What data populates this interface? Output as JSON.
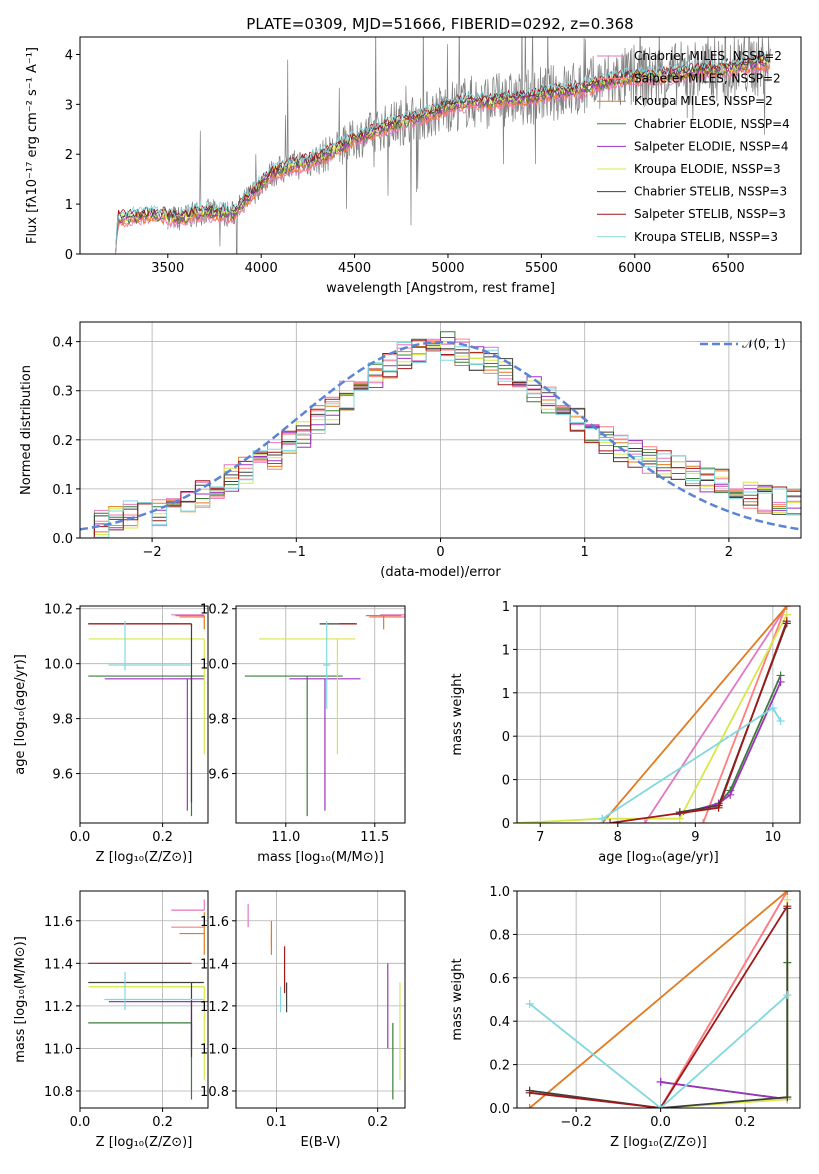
{
  "colors": {
    "chabrier_miles": "#e377c2",
    "salpeter_miles": "#ff7f7f",
    "kroupa_miles": "#e07b20",
    "chabrier_elodie": "#3a7d3a",
    "salpeter_elodie": "#9d33bd",
    "kroupa_elodie": "#d6e84a",
    "chabrier_stelib": "#404040",
    "salpeter_stelib": "#a01818",
    "kroupa_stelib": "#80d8e0",
    "data": "#808080",
    "normal": "#5b83d6",
    "grid": "#b0b0b0"
  },
  "chart_data": [
    {
      "id": "spectrum",
      "type": "line",
      "title": "PLATE=0309, MJD=51666, FIBERID=0292, z=0.368",
      "xlabel": "wavelength [Angstrom, rest frame]",
      "ylabel": "Flux [fλ10⁻¹⁷ erg cm⁻² s⁻¹ A⁻¹]",
      "xlim": [
        3030,
        6890
      ],
      "ylim": [
        0,
        4.35
      ],
      "xticks": [
        3500,
        4000,
        4500,
        5000,
        5500,
        6000,
        6500
      ],
      "yticks": [
        0,
        1,
        2,
        3,
        4
      ],
      "grid": false,
      "legend_position": "top-right",
      "series": [
        {
          "name": "Chabrier MILES, N_SSP=2",
          "legend": "Chabrier MILES, NSSP=2"
        },
        {
          "name": "Salpeter MILES, N_SSP=2",
          "legend": "Salpeter MILES, NSSP=2"
        },
        {
          "name": "Kroupa MILES, N_SSP=2",
          "legend": "Kroupa MILES, NSSP=2"
        },
        {
          "name": "Chabrier ELODIE, N_SSP=4",
          "legend": "Chabrier ELODIE, NSSP=4"
        },
        {
          "name": "Salpeter ELODIE, N_SSP=4",
          "legend": "Salpeter ELODIE, NSSP=4"
        },
        {
          "name": "Kroupa ELODIE, N_SSP=3",
          "legend": "Kroupa ELODIE, NSSP=3"
        },
        {
          "name": "Chabrier STELIB, N_SSP=3",
          "legend": "Chabrier STELIB, NSSP=3"
        },
        {
          "name": "Salpeter STELIB, N_SSP=3",
          "legend": "Salpeter STELIB, NSSP=3"
        },
        {
          "name": "Kroupa STELIB, N_SSP=3",
          "legend": "Kroupa STELIB, NSSP=3"
        }
      ],
      "model_continuum": {
        "x": [
          3220,
          3230,
          3400,
          3500,
          3550,
          3700,
          3850,
          3950,
          4050,
          4150,
          4300,
          4400,
          4500,
          4600,
          4700,
          4800,
          4900,
          5000,
          5100,
          5200,
          5300,
          5400,
          5500,
          5600,
          5700,
          5800,
          5900,
          6000,
          6100,
          6200,
          6300,
          6400,
          6500,
          6600,
          6730
        ],
        "y": [
          0,
          0.7,
          0.78,
          0.76,
          0.7,
          0.85,
          0.8,
          1.2,
          1.6,
          1.75,
          1.9,
          2.1,
          2.3,
          2.45,
          2.6,
          2.7,
          2.8,
          2.95,
          3.05,
          3.05,
          3.1,
          3.1,
          3.2,
          3.25,
          3.3,
          3.4,
          3.5,
          3.55,
          3.55,
          3.6,
          3.65,
          3.7,
          3.7,
          3.8,
          3.85
        ]
      },
      "data_series": {
        "name": "data",
        "x_range": [
          3500,
          6730
        ],
        "note_shape": "noisy observed spectrum following the model continuum"
      }
    },
    {
      "id": "residuals",
      "type": "line",
      "xlabel": "(data-model)/error",
      "ylabel": "Normed distribution",
      "xlim": [
        -2.5,
        2.5
      ],
      "ylim": [
        0,
        0.44
      ],
      "xticks": [
        -2,
        -1,
        0,
        1,
        2
      ],
      "yticks": [
        0.0,
        0.1,
        0.2,
        0.3,
        0.4
      ],
      "grid": true,
      "legend_position": "top-right",
      "series": [
        {
          "name": "𝒩(0, 1)",
          "legend": "𝒩(0, 1)",
          "mean": 0,
          "sigma": 1
        }
      ],
      "histogram_bins": {
        "start": -2.5,
        "width": 0.1,
        "heights": [
          0.02,
          0.03,
          0.04,
          0.05,
          0.06,
          0.05,
          0.07,
          0.08,
          0.09,
          0.1,
          0.12,
          0.14,
          0.16,
          0.17,
          0.19,
          0.21,
          0.24,
          0.26,
          0.29,
          0.31,
          0.33,
          0.35,
          0.37,
          0.38,
          0.38,
          0.39,
          0.38,
          0.37,
          0.36,
          0.34,
          0.32,
          0.3,
          0.28,
          0.26,
          0.24,
          0.22,
          0.2,
          0.18,
          0.17,
          0.16,
          0.15,
          0.14,
          0.13,
          0.12,
          0.11,
          0.1,
          0.09,
          0.08,
          0.075,
          0.07
        ]
      }
    },
    {
      "id": "age-vs-Z",
      "type": "scatter",
      "xlabel": "Z [log₁₀(Z/Z⊙)]",
      "ylabel": "age  [log₁₀(age/yr)]",
      "xlim": [
        0,
        0.31
      ],
      "ylim": [
        9.42,
        10.21
      ],
      "xticks": [
        0.0,
        0.2
      ],
      "yticks": [
        9.6,
        9.8,
        10.0,
        10.2
      ],
      "grid": true,
      "points": [
        {
          "series": "Chabrier MILES",
          "x": 0.301,
          "y": 10.178,
          "xerr": [
            0.08,
            0.0
          ],
          "yerr": [
            0.0,
            0.0
          ]
        },
        {
          "series": "Salpeter MILES",
          "x": 0.301,
          "y": 10.17,
          "xerr": [
            0.06,
            0.0
          ],
          "yerr": [
            0.0,
            0.0
          ]
        },
        {
          "series": "Kroupa MILES",
          "x": 0.301,
          "y": 10.175,
          "xerr": [
            0.07,
            0.0
          ],
          "yerr": [
            0.05,
            0.0
          ]
        },
        {
          "series": "Chabrier ELODIE",
          "x": 0.27,
          "y": 9.955,
          "xerr": [
            0.25,
            0.03
          ],
          "yerr": [
            0.51,
            0.0
          ]
        },
        {
          "series": "Salpeter ELODIE",
          "x": 0.26,
          "y": 9.945,
          "xerr": [
            0.2,
            0.04
          ],
          "yerr": [
            0.48,
            0.0
          ]
        },
        {
          "series": "Kroupa ELODIE",
          "x": 0.301,
          "y": 10.09,
          "xerr": [
            0.28,
            0.0
          ],
          "yerr": [
            0.42,
            0.0
          ]
        },
        {
          "series": "Chabrier STELIB",
          "x": 0.27,
          "y": 10.145,
          "xerr": [
            0.25,
            0.0
          ],
          "yerr": [
            0.65,
            0.0
          ]
        },
        {
          "series": "Salpeter STELIB",
          "x": 0.27,
          "y": 10.145,
          "xerr": [
            0.25,
            0.0
          ],
          "yerr": [
            0.01,
            0.0
          ]
        },
        {
          "series": "Kroupa STELIB",
          "x": 0.109,
          "y": 9.995,
          "xerr": [
            0.04,
            0.16
          ],
          "yerr": [
            0.02,
            0.16
          ]
        }
      ]
    },
    {
      "id": "age-vs-mass",
      "type": "scatter",
      "xlabel": "mass [log₁₀(M/M⊙)]",
      "ylabel": "",
      "xlim": [
        10.72,
        11.67
      ],
      "ylim": [
        9.42,
        10.21
      ],
      "xticks": [
        11.0,
        11.5
      ],
      "yticks": [
        9.6,
        9.8,
        10.0,
        10.2
      ],
      "grid": true,
      "points": [
        {
          "series": "Chabrier MILES",
          "x": 11.65,
          "y": 10.178,
          "xerr": [
            0.12,
            0.02
          ],
          "yerr": [
            0.0,
            0.0
          ]
        },
        {
          "series": "Salpeter MILES",
          "x": 11.57,
          "y": 10.17,
          "xerr": [
            0.1,
            0.1
          ],
          "yerr": [
            0.0,
            0.0
          ]
        },
        {
          "series": "Kroupa MILES",
          "x": 11.55,
          "y": 10.175,
          "xerr": [
            0.1,
            0.1
          ],
          "yerr": [
            0.05,
            0.0
          ]
        },
        {
          "series": "Chabrier ELODIE",
          "x": 11.12,
          "y": 9.955,
          "xerr": [
            0.35,
            0.2
          ],
          "yerr": [
            0.51,
            0.0
          ]
        },
        {
          "series": "Salpeter ELODIE",
          "x": 11.22,
          "y": 9.945,
          "xerr": [
            0.2,
            0.2
          ],
          "yerr": [
            0.48,
            0.0
          ]
        },
        {
          "series": "Kroupa ELODIE",
          "x": 11.29,
          "y": 10.09,
          "xerr": [
            0.44,
            0.1
          ],
          "yerr": [
            0.42,
            0.0
          ]
        },
        {
          "series": "Chabrier STELIB",
          "x": 11.31,
          "y": 10.145,
          "xerr": [
            0.12,
            0.08
          ],
          "yerr": [
            0.0,
            0.0
          ]
        },
        {
          "series": "Salpeter STELIB",
          "x": 11.4,
          "y": 10.145,
          "xerr": [
            0.1,
            0.0
          ],
          "yerr": [
            0.0,
            0.0
          ]
        },
        {
          "series": "Kroupa STELIB",
          "x": 11.23,
          "y": 9.995,
          "xerr": [
            0.02,
            0.02
          ],
          "yerr": [
            0.16,
            0.16
          ]
        }
      ]
    },
    {
      "id": "weight-vs-age",
      "type": "line",
      "xlabel": "age  [log₁₀(age/yr)]",
      "ylabel": "mass weight",
      "xlim": [
        6.7,
        10.35
      ],
      "ylim": [
        0,
        1.0
      ],
      "xticks": [
        7,
        8,
        9,
        10
      ],
      "yticks": [
        0.0,
        0.2,
        0.4,
        0.6,
        0.8,
        1.0
      ],
      "grid": true,
      "series": [
        {
          "series": "Chabrier MILES",
          "x": [
            8.35,
            10.18
          ],
          "y": [
            0.0,
            1.0
          ]
        },
        {
          "series": "Salpeter MILES",
          "x": [
            9.1,
            10.17
          ],
          "y": [
            0.0,
            1.0
          ]
        },
        {
          "series": "Kroupa MILES",
          "x": [
            7.8,
            10.18
          ],
          "y": [
            0.0,
            1.0
          ]
        },
        {
          "series": "Chabrier ELODIE",
          "x": [
            8.8,
            9.3,
            9.45,
            10.1
          ],
          "y": [
            0.04,
            0.09,
            0.15,
            0.68
          ]
        },
        {
          "series": "Salpeter ELODIE",
          "x": [
            8.8,
            9.3,
            9.45,
            10.1
          ],
          "y": [
            0.04,
            0.09,
            0.13,
            0.65
          ]
        },
        {
          "series": "Kroupa ELODIE",
          "x": [
            6.7,
            7.8,
            8.8,
            10.18
          ],
          "y": [
            0.0,
            0.02,
            0.02,
            0.96
          ]
        },
        {
          "series": "Chabrier STELIB",
          "x": [
            8.8,
            9.3,
            10.18
          ],
          "y": [
            0.05,
            0.08,
            0.92
          ]
        },
        {
          "series": "Salpeter STELIB",
          "x": [
            7.9,
            9.3,
            10.18
          ],
          "y": [
            0.0,
            0.07,
            0.93
          ]
        },
        {
          "series": "Kroupa STELIB",
          "x": [
            7.8,
            10.0,
            10.1
          ],
          "y": [
            0.02,
            0.53,
            0.47
          ]
        }
      ]
    },
    {
      "id": "mass-vs-Z",
      "type": "scatter",
      "xlabel": "Z [log₁₀(Z/Z⊙)]",
      "ylabel": "mass [log₁₀(M/M⊙)]",
      "xlim": [
        0,
        0.31
      ],
      "ylim": [
        10.72,
        11.74
      ],
      "xticks": [
        0.0,
        0.2
      ],
      "yticks": [
        10.8,
        11.0,
        11.2,
        11.4,
        11.6
      ],
      "grid": true,
      "points": [
        {
          "series": "Chabrier MILES",
          "x": 0.301,
          "y": 11.65,
          "xerr": [
            0.08,
            0.0
          ],
          "yerr": [
            0.0,
            0.05
          ]
        },
        {
          "series": "Salpeter MILES",
          "x": 0.301,
          "y": 11.57,
          "xerr": [
            0.08,
            0.0
          ],
          "yerr": [
            0.0,
            0.0
          ]
        },
        {
          "series": "Kroupa MILES",
          "x": 0.301,
          "y": 11.54,
          "xerr": [
            0.06,
            0.0
          ],
          "yerr": [
            0.1,
            0.1
          ]
        },
        {
          "series": "Chabrier ELODIE",
          "x": 0.27,
          "y": 11.12,
          "xerr": [
            0.25,
            0.0
          ],
          "yerr": [
            0.36,
            0.0
          ]
        },
        {
          "series": "Salpeter ELODIE",
          "x": 0.27,
          "y": 11.22,
          "xerr": [
            0.2,
            0.04
          ],
          "yerr": [
            0.2,
            0.0
          ]
        },
        {
          "series": "Kroupa ELODIE",
          "x": 0.301,
          "y": 11.29,
          "xerr": [
            0.28,
            0.0
          ],
          "yerr": [
            0.44,
            0.0
          ]
        },
        {
          "series": "Chabrier STELIB",
          "x": 0.27,
          "y": 11.31,
          "xerr": [
            0.25,
            0.03
          ],
          "yerr": [
            0.35,
            0.0
          ]
        },
        {
          "series": "Salpeter STELIB",
          "x": 0.27,
          "y": 11.4,
          "xerr": [
            0.25,
            0.0
          ],
          "yerr": [
            0.0,
            0.0
          ]
        },
        {
          "series": "Kroupa STELIB",
          "x": 0.109,
          "y": 11.23,
          "xerr": [
            0.05,
            0.19
          ],
          "yerr": [
            0.05,
            0.13
          ]
        }
      ]
    },
    {
      "id": "mass-vs-ebv",
      "type": "scatter",
      "xlabel": "E(B-V)",
      "ylabel": "",
      "xlim": [
        0.06,
        0.227
      ],
      "ylim": [
        10.72,
        11.74
      ],
      "xticks": [
        0.1,
        0.2
      ],
      "yticks": [
        10.8,
        11.0,
        11.2,
        11.4,
        11.6
      ],
      "grid": true,
      "points": [
        {
          "series": "Chabrier MILES",
          "x": 0.072,
          "y": 11.65,
          "xerr": [
            0.0,
            0.0
          ],
          "yerr": [
            0.08,
            0.03
          ]
        },
        {
          "series": "Salpeter MILES",
          "x": 0.095,
          "y": 11.54,
          "xerr": [
            0.0,
            0.0
          ],
          "yerr": [
            0.06,
            0.0
          ]
        },
        {
          "series": "Kroupa MILES",
          "x": 0.095,
          "y": 11.54,
          "xerr": [
            0.0,
            0.0
          ],
          "yerr": [
            0.1,
            0.06
          ]
        },
        {
          "series": "Chabrier ELODIE",
          "x": 0.215,
          "y": 11.12,
          "xerr": [
            0.0,
            0.0
          ],
          "yerr": [
            0.36,
            0.0
          ]
        },
        {
          "series": "Salpeter ELODIE",
          "x": 0.21,
          "y": 11.2,
          "xerr": [
            0.0,
            0.0
          ],
          "yerr": [
            0.2,
            0.2
          ]
        },
        {
          "series": "Kroupa ELODIE",
          "x": 0.222,
          "y": 11.29,
          "xerr": [
            0.0,
            0.0
          ],
          "yerr": [
            0.44,
            0.02
          ]
        },
        {
          "series": "Chabrier STELIB",
          "x": 0.11,
          "y": 11.31,
          "xerr": [
            0.0,
            0.0
          ],
          "yerr": [
            0.14,
            0.0
          ]
        },
        {
          "series": "Salpeter STELIB",
          "x": 0.108,
          "y": 11.38,
          "xerr": [
            0.0,
            0.0
          ],
          "yerr": [
            0.12,
            0.1
          ]
        },
        {
          "series": "Kroupa STELIB",
          "x": 0.104,
          "y": 11.23,
          "xerr": [
            0.0,
            0.0
          ],
          "yerr": [
            0.06,
            0.06
          ]
        }
      ]
    },
    {
      "id": "weight-vs-Z",
      "type": "line",
      "xlabel": "Z [log₁₀(Z/Z⊙)]",
      "ylabel": "mass weight",
      "xlim": [
        -0.34,
        0.33
      ],
      "ylim": [
        0,
        1.0
      ],
      "xticks": [
        -0.2,
        0.0,
        0.2
      ],
      "yticks": [
        0.0,
        0.2,
        0.4,
        0.6,
        0.8,
        1.0
      ],
      "grid": true,
      "series": [
        {
          "series": "Chabrier MILES",
          "x": [
            0.0,
            0.3
          ],
          "y": [
            0.0,
            1.0
          ]
        },
        {
          "series": "Salpeter MILES",
          "x": [
            0.0,
            0.3
          ],
          "y": [
            0.0,
            1.0
          ]
        },
        {
          "series": "Kroupa MILES",
          "x": [
            -0.31,
            0.3
          ],
          "y": [
            0.0,
            1.0
          ]
        },
        {
          "series": "Chabrier ELODIE",
          "x": [
            0.0,
            0.3,
            0.3
          ],
          "y": [
            0.12,
            0.04,
            0.67
          ]
        },
        {
          "series": "Salpeter ELODIE",
          "x": [
            0.0,
            0.3
          ],
          "y": [
            0.12,
            0.04
          ]
        },
        {
          "series": "Kroupa ELODIE",
          "x": [
            0.0,
            0.3,
            0.3
          ],
          "y": [
            0.0,
            0.04,
            0.96
          ]
        },
        {
          "series": "Chabrier STELIB",
          "x": [
            -0.31,
            0.0,
            0.3,
            0.3
          ],
          "y": [
            0.08,
            0.0,
            0.05,
            0.92
          ]
        },
        {
          "series": "Salpeter STELIB",
          "x": [
            -0.31,
            0.0,
            0.3
          ],
          "y": [
            0.07,
            0.0,
            0.93
          ]
        },
        {
          "series": "Kroupa STELIB",
          "x": [
            -0.31,
            0.0,
            0.3
          ],
          "y": [
            0.48,
            0.0,
            0.52
          ]
        }
      ]
    }
  ]
}
